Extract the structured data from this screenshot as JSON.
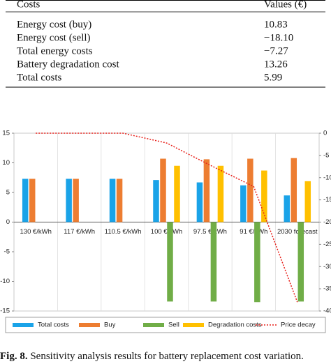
{
  "table": {
    "header": [
      "Costs",
      "Values (€)"
    ],
    "rows": [
      [
        "Energy cost (buy)",
        "10.83"
      ],
      [
        "Energy cost (sell)",
        "−18.10"
      ],
      [
        "Total energy costs",
        "−7.27"
      ],
      [
        "Battery degradation cost",
        "13.26"
      ],
      [
        "Total costs",
        "5.99"
      ]
    ]
  },
  "chart_data": {
    "type": "bar",
    "categories": [
      "130 €/kWh",
      "117 €/kWh",
      "110.5 €/kWh",
      "100 €/kWh",
      "97.5 €/kWh",
      "91 €/kWh",
      "2030 forecast"
    ],
    "series": [
      {
        "name": "Total costs",
        "color": "#1aa3e8",
        "values": [
          7.3,
          7.3,
          7.3,
          7.1,
          6.7,
          6.2,
          4.5
        ]
      },
      {
        "name": "Buy",
        "color": "#ed7d31",
        "values": [
          7.3,
          7.3,
          7.3,
          10.7,
          10.6,
          10.7,
          10.8
        ]
      },
      {
        "name": "Sell",
        "color": "#70ad47",
        "values": [
          0,
          0,
          0,
          -13.4,
          -13.4,
          -13.5,
          -13.4
        ]
      },
      {
        "name": "Degradation costs",
        "color": "#ffc000",
        "values": [
          0,
          0,
          0,
          9.5,
          9.5,
          8.7,
          6.9
        ]
      },
      {
        "name": "Price decay",
        "color": "#e8201a",
        "type": "line",
        "axis": "y2",
        "values": [
          0,
          0,
          0,
          -2.2,
          -7.2,
          -12,
          -38
        ]
      }
    ],
    "ylim": [
      -15,
      15
    ],
    "yticks": [
      -15,
      -10,
      -5,
      0,
      5,
      10,
      15
    ],
    "y2lim": [
      -40,
      0
    ],
    "y2ticks": [
      -40,
      -35,
      -30,
      -25,
      -20,
      -15,
      -10,
      -5,
      0
    ],
    "grid": true,
    "legend": "bottom"
  },
  "caption": {
    "label": "Fig. 8.",
    "text": "Sensitivity analysis results for battery replacement cost variation."
  }
}
